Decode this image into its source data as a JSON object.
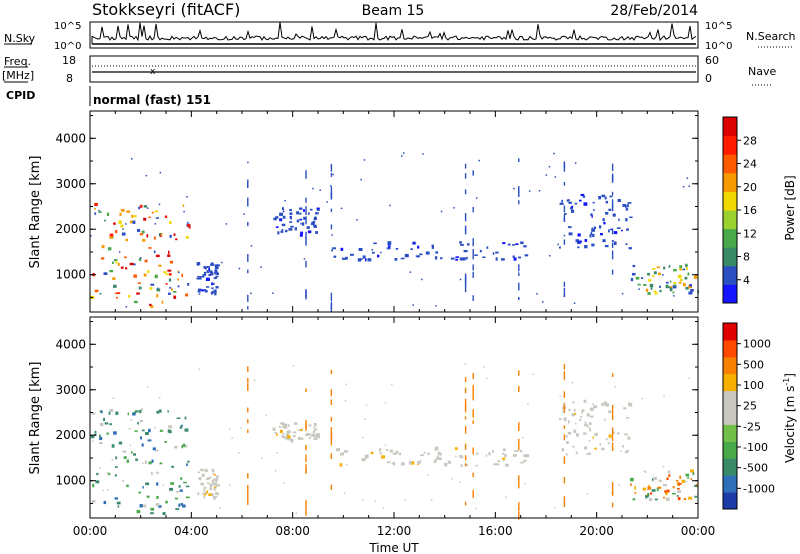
{
  "header": {
    "station": "Stokkseyri (fitACF)",
    "beam": "Beam 15",
    "date": "28/Feb/2014"
  },
  "strips": {
    "nsky_label": "N.Sky",
    "nsky_ticks": [
      "10^5",
      "10^0"
    ],
    "nsearch_label": "N.Search",
    "nsearch_ticks": [
      "10^5",
      "10^0"
    ],
    "freq_label": "Freq.",
    "freq_unit": "[MHz]",
    "freq_ticks": [
      "18",
      "8"
    ],
    "nave_label": "Nave",
    "nave_ticks": [
      "60",
      "0"
    ],
    "cpid_label": "CPID",
    "cpid_value": "normal (fast) 151"
  },
  "chart_data": [
    {
      "type": "heatmap",
      "name": "power",
      "ylabel": "Slant Range [km]",
      "yticks": [
        "4000",
        "3000",
        "2000",
        "1000"
      ],
      "ylim": [
        180,
        4600
      ],
      "xlim": [
        0,
        24
      ],
      "colorbar_label": "Power [dB]",
      "colorbar_ticks": [
        "28",
        "24",
        "20",
        "16",
        "12",
        "8",
        "4"
      ],
      "colorbar_colors": [
        "#1414ff",
        "#2b4fc2",
        "#3a8a6a",
        "#49a84a",
        "#9ad12e",
        "#f0d800",
        "#f79a00",
        "#ff5a00",
        "#ff1a00",
        "#dd0000"
      ],
      "regions": [
        {
          "x0": 0.0,
          "x1": 3.9,
          "y0": 300,
          "y1": 2600,
          "level": "high"
        },
        {
          "x0": 4.2,
          "x1": 5.0,
          "y0": 600,
          "y1": 1300,
          "level": "low"
        },
        {
          "x0": 7.2,
          "x1": 9.0,
          "y0": 1900,
          "y1": 2500,
          "level": "low"
        },
        {
          "x0": 9.5,
          "x1": 17.3,
          "y0": 1350,
          "y1": 1750,
          "level": "low"
        },
        {
          "x0": 18.5,
          "x1": 21.3,
          "y0": 1600,
          "y1": 2800,
          "level": "low"
        },
        {
          "x0": 21.3,
          "x1": 24.0,
          "y0": 600,
          "y1": 1250,
          "level": "mixed"
        }
      ]
    },
    {
      "type": "heatmap",
      "name": "velocity",
      "xlabel": "Time UT",
      "xticks": [
        "00:00",
        "04:00",
        "08:00",
        "12:00",
        "16:00",
        "20:00",
        "00:00"
      ],
      "ylabel": "Slant Range [km]",
      "yticks": [
        "4000",
        "3000",
        "2000",
        "1000"
      ],
      "ylim": [
        180,
        4600
      ],
      "xlim": [
        0,
        24
      ],
      "colorbar_label": "Velocity [m s",
      "colorbar_label_exp": "-1",
      "colorbar_label_end": "]",
      "colorbar_ticks": [
        "1000",
        "500",
        "100",
        "25",
        "-25",
        "-100",
        "-500",
        "-1000"
      ],
      "colorbar_colors": [
        "#1e3ca8",
        "#2e6fb8",
        "#3a8a6a",
        "#49a84a",
        "#72c04a",
        "#c8c8c0",
        "#c8c8c0",
        "#f7b000",
        "#f78000",
        "#ff4a00",
        "#e00000"
      ],
      "regions": [
        {
          "x0": 0.0,
          "x1": 3.9,
          "y0": 300,
          "y1": 2600,
          "level": "green"
        },
        {
          "x0": 4.2,
          "x1": 5.0,
          "y0": 600,
          "y1": 1300,
          "level": "grey"
        },
        {
          "x0": 7.2,
          "x1": 9.0,
          "y0": 1900,
          "y1": 2300,
          "level": "grey"
        },
        {
          "x0": 9.5,
          "x1": 17.3,
          "y0": 1350,
          "y1": 1750,
          "level": "grey"
        },
        {
          "x0": 18.5,
          "x1": 21.3,
          "y0": 1600,
          "y1": 2800,
          "level": "grey"
        },
        {
          "x0": 21.3,
          "x1": 24.0,
          "y0": 600,
          "y1": 1250,
          "level": "orange"
        }
      ]
    }
  ]
}
